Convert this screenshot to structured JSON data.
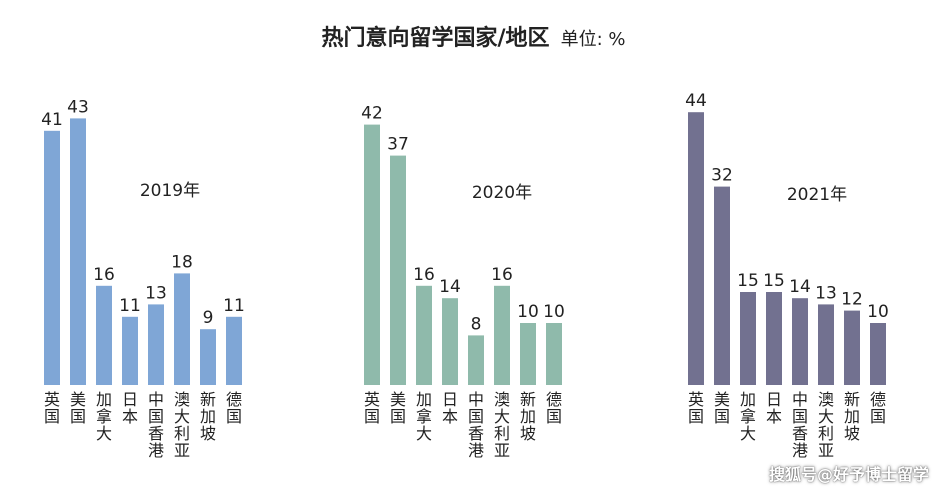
{
  "header": {
    "title": "热门意向留学国家/地区",
    "unit": "单位: %"
  },
  "watermark": "搜狐号@好予博士留学",
  "chart_data": [
    {
      "type": "bar",
      "year_label": "2019年",
      "color": "#7fa6d6",
      "categories": [
        "英国",
        "美国",
        "加拿大",
        "日本",
        "中国香港",
        "澳大利亚",
        "新加坡",
        "德国"
      ],
      "values": [
        41,
        43,
        16,
        11,
        13,
        18,
        9,
        11
      ],
      "ylim": [
        0,
        44
      ]
    },
    {
      "type": "bar",
      "year_label": "2020年",
      "color": "#8fbaab",
      "categories": [
        "英国",
        "美国",
        "加拿大",
        "日本",
        "中国香港",
        "澳大利亚",
        "新加坡",
        "德国"
      ],
      "values": [
        42,
        37,
        16,
        14,
        8,
        16,
        10,
        10
      ],
      "ylim": [
        0,
        44
      ]
    },
    {
      "type": "bar",
      "year_label": "2021年",
      "color": "#727190",
      "categories": [
        "英国",
        "美国",
        "加拿大",
        "日本",
        "中国香港",
        "澳大利亚",
        "新加坡",
        "德国"
      ],
      "values": [
        44,
        32,
        15,
        15,
        14,
        13,
        12,
        10
      ],
      "ylim": [
        0,
        44
      ]
    }
  ]
}
